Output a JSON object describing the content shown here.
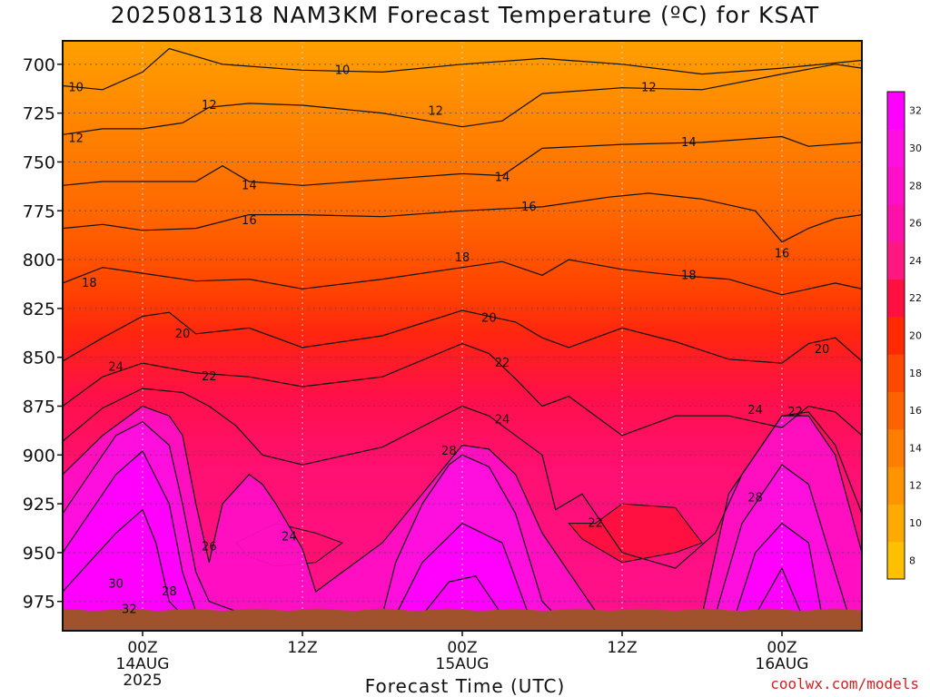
{
  "chart_data": {
    "type": "heatmap",
    "title": "2025081318 NAM3KM Forecast Temperature (ºC) for KSAT",
    "xlabel": "Forecast Time (UTC)",
    "ylabel": "",
    "y_axis": {
      "ticks": [
        700,
        725,
        750,
        775,
        800,
        825,
        850,
        875,
        900,
        925,
        950,
        975
      ],
      "range": [
        688,
        990
      ],
      "inverted": true,
      "units": "hPa"
    },
    "x_axis": {
      "range_hours": [
        -6,
        54
      ],
      "ticks": [
        {
          "hour": 0,
          "lines": [
            "00Z",
            "14AUG",
            "2025"
          ]
        },
        {
          "hour": 12,
          "lines": [
            "12Z"
          ]
        },
        {
          "hour": 24,
          "lines": [
            "00Z",
            "15AUG"
          ]
        },
        {
          "hour": 36,
          "lines": [
            "12Z"
          ]
        },
        {
          "hour": 48,
          "lines": [
            "00Z",
            "16AUG"
          ]
        }
      ]
    },
    "grid": true,
    "colorbar": {
      "ticks": [
        8,
        10,
        12,
        14,
        16,
        18,
        20,
        22,
        24,
        26,
        28,
        30,
        32
      ],
      "colors": [
        "#ffc000",
        "#ffaa00",
        "#ff9400",
        "#ff7d00",
        "#ff6200",
        "#ff4800",
        "#ff2a00",
        "#ff1040",
        "#ff1880",
        "#ff10a8",
        "#ff10c8",
        "#ff10e0",
        "#ff00ff"
      ],
      "placement": "right"
    },
    "contour_interval": 2,
    "surface_pressure_hpa": 980,
    "terrain_color": "#a0522d",
    "isotherms": [
      {
        "temp": 10,
        "points": [
          [
            -6,
            711
          ],
          [
            -3,
            713
          ],
          [
            0,
            704
          ],
          [
            2,
            692
          ],
          [
            6,
            700
          ],
          [
            12,
            703
          ],
          [
            18,
            704
          ],
          [
            24,
            700
          ],
          [
            30,
            697
          ],
          [
            36,
            700
          ],
          [
            42,
            705
          ],
          [
            48,
            702
          ],
          [
            54,
            698
          ]
        ]
      },
      {
        "temp": 12,
        "points": [
          [
            -6,
            736
          ],
          [
            -3,
            733
          ],
          [
            0,
            733
          ],
          [
            3,
            730
          ],
          [
            5,
            722
          ],
          [
            8,
            720
          ],
          [
            12,
            721
          ],
          [
            18,
            725
          ],
          [
            24,
            732
          ],
          [
            27,
            729
          ],
          [
            30,
            715
          ],
          [
            36,
            712
          ],
          [
            42,
            713
          ],
          [
            48,
            705
          ],
          [
            52,
            700
          ],
          [
            54,
            702
          ]
        ]
      },
      {
        "temp": 14,
        "points": [
          [
            -6,
            762
          ],
          [
            -3,
            760
          ],
          [
            0,
            760
          ],
          [
            4,
            760
          ],
          [
            6,
            752
          ],
          [
            8,
            760
          ],
          [
            12,
            762
          ],
          [
            18,
            759
          ],
          [
            24,
            756
          ],
          [
            27,
            757
          ],
          [
            30,
            743
          ],
          [
            36,
            741
          ],
          [
            42,
            740
          ],
          [
            48,
            737
          ],
          [
            50,
            742
          ],
          [
            54,
            740
          ]
        ]
      },
      {
        "temp": 16,
        "points": [
          [
            -6,
            784
          ],
          [
            -3,
            782
          ],
          [
            0,
            785
          ],
          [
            4,
            784
          ],
          [
            8,
            777
          ],
          [
            12,
            777
          ],
          [
            18,
            778
          ],
          [
            24,
            775
          ],
          [
            30,
            773
          ],
          [
            33,
            770
          ],
          [
            35,
            768
          ],
          [
            38,
            766
          ],
          [
            42,
            769
          ],
          [
            46,
            775
          ],
          [
            48,
            791
          ],
          [
            50,
            784
          ],
          [
            52,
            779
          ],
          [
            54,
            777
          ]
        ]
      },
      {
        "temp": 18,
        "points": [
          [
            -6,
            812
          ],
          [
            -3,
            804
          ],
          [
            0,
            807
          ],
          [
            4,
            811
          ],
          [
            8,
            810
          ],
          [
            12,
            815
          ],
          [
            18,
            810
          ],
          [
            24,
            804
          ],
          [
            27,
            801
          ],
          [
            30,
            808
          ],
          [
            32,
            800
          ],
          [
            36,
            805
          ],
          [
            40,
            808
          ],
          [
            44,
            810
          ],
          [
            48,
            818
          ],
          [
            52,
            812
          ],
          [
            54,
            815
          ]
        ]
      },
      {
        "temp": 20,
        "points": [
          [
            -6,
            852
          ],
          [
            -3,
            840
          ],
          [
            0,
            829
          ],
          [
            2,
            827
          ],
          [
            4,
            838
          ],
          [
            8,
            835
          ],
          [
            12,
            845
          ],
          [
            18,
            839
          ],
          [
            24,
            826
          ],
          [
            28,
            832
          ],
          [
            30,
            840
          ],
          [
            32,
            845
          ],
          [
            36,
            835
          ],
          [
            40,
            842
          ],
          [
            44,
            851
          ],
          [
            48,
            853
          ],
          [
            50,
            843
          ],
          [
            52,
            840
          ],
          [
            54,
            852
          ]
        ]
      },
      {
        "temp": 22,
        "points": [
          [
            -6,
            875
          ],
          [
            -3,
            860
          ],
          [
            0,
            853
          ],
          [
            4,
            858
          ],
          [
            8,
            860
          ],
          [
            12,
            865
          ],
          [
            18,
            860
          ],
          [
            24,
            843
          ],
          [
            26,
            848
          ],
          [
            28,
            861
          ],
          [
            30,
            875
          ],
          [
            32,
            870
          ],
          [
            36,
            890
          ],
          [
            40,
            880
          ],
          [
            44,
            880
          ],
          [
            48,
            886
          ],
          [
            50,
            875
          ],
          [
            52,
            878
          ],
          [
            54,
            890
          ]
        ]
      },
      {
        "temp": 24,
        "points": [
          [
            -6,
            893
          ],
          [
            -3,
            876
          ],
          [
            0,
            866
          ],
          [
            3,
            868
          ],
          [
            5,
            875
          ],
          [
            7,
            885
          ],
          [
            9,
            900
          ],
          [
            12,
            905
          ],
          [
            18,
            896
          ],
          [
            24,
            875
          ],
          [
            26,
            880
          ],
          [
            28,
            890
          ],
          [
            30,
            900
          ],
          [
            31,
            928
          ],
          [
            33,
            920
          ],
          [
            36,
            950
          ],
          [
            40,
            958
          ],
          [
            43,
            940
          ],
          [
            45,
            910
          ],
          [
            48,
            880
          ],
          [
            50,
            878
          ],
          [
            52,
            895
          ],
          [
            54,
            930
          ]
        ]
      },
      {
        "temp": 26,
        "points": [
          [
            -6,
            910
          ],
          [
            -3,
            890
          ],
          [
            0,
            875
          ],
          [
            2,
            880
          ],
          [
            3,
            890
          ],
          [
            4,
            925
          ],
          [
            5,
            955
          ],
          [
            6,
            925
          ],
          [
            8,
            910
          ],
          [
            9,
            915
          ],
          [
            10,
            925
          ],
          [
            12,
            948
          ],
          [
            13,
            970
          ],
          [
            15,
            960
          ],
          [
            18,
            945
          ],
          [
            21,
            920
          ],
          [
            24,
            895
          ],
          [
            26,
            897
          ],
          [
            28,
            910
          ],
          [
            30,
            940
          ],
          [
            32,
            960
          ],
          [
            34,
            980
          ]
        ]
      },
      {
        "temp": 28,
        "points": [
          [
            -6,
            930
          ],
          [
            -4,
            910
          ],
          [
            -2,
            890
          ],
          [
            0,
            883
          ],
          [
            2,
            895
          ],
          [
            3,
            925
          ],
          [
            4,
            960
          ],
          [
            5,
            975
          ],
          [
            7,
            980
          ]
        ]
      },
      {
        "temp": 30,
        "points": [
          [
            -6,
            950
          ],
          [
            -4,
            930
          ],
          [
            -2,
            910
          ],
          [
            0,
            898
          ],
          [
            2,
            925
          ],
          [
            3,
            960
          ],
          [
            4,
            980
          ]
        ]
      },
      {
        "temp": 32,
        "points": [
          [
            -6,
            970
          ],
          [
            -4,
            955
          ],
          [
            -2,
            940
          ],
          [
            0,
            928
          ],
          [
            1,
            945
          ],
          [
            2,
            975
          ],
          [
            3,
            982
          ]
        ]
      },
      {
        "temp": 28,
        "points": [
          [
            18,
            982
          ],
          [
            19,
            955
          ],
          [
            21,
            925
          ],
          [
            23,
            905
          ],
          [
            24,
            900
          ],
          [
            26,
            906
          ],
          [
            28,
            930
          ],
          [
            30,
            975
          ],
          [
            31,
            982
          ]
        ]
      },
      {
        "temp": 30,
        "points": [
          [
            19,
            982
          ],
          [
            21,
            955
          ],
          [
            24,
            935
          ],
          [
            27,
            945
          ],
          [
            29,
            982
          ]
        ]
      },
      {
        "temp": 32,
        "points": [
          [
            21,
            982
          ],
          [
            23,
            965
          ],
          [
            25,
            962
          ],
          [
            27,
            982
          ]
        ]
      },
      {
        "temp": 26,
        "points": [
          [
            42,
            982
          ],
          [
            44,
            920
          ],
          [
            48,
            880
          ],
          [
            50,
            880
          ],
          [
            52,
            900
          ],
          [
            54,
            950
          ]
        ]
      },
      {
        "temp": 28,
        "points": [
          [
            43,
            982
          ],
          [
            45,
            935
          ],
          [
            48,
            905
          ],
          [
            50,
            915
          ],
          [
            52,
            960
          ],
          [
            53,
            982
          ]
        ]
      },
      {
        "temp": 30,
        "points": [
          [
            44.5,
            982
          ],
          [
            46,
            950
          ],
          [
            48,
            935
          ],
          [
            50,
            945
          ],
          [
            51,
            982
          ]
        ]
      },
      {
        "temp": 32,
        "points": [
          [
            46,
            982
          ],
          [
            48,
            958
          ],
          [
            49.5,
            982
          ]
        ]
      }
    ],
    "warm_pocket_22": [
      [
        32,
        935
      ],
      [
        34,
        935
      ],
      [
        36,
        925
      ],
      [
        40,
        927
      ],
      [
        42,
        945
      ],
      [
        40,
        950
      ],
      [
        36,
        955
      ],
      [
        33,
        943
      ]
    ],
    "warm_pocket_24": [
      [
        7,
        945
      ],
      [
        10,
        935
      ],
      [
        13,
        940
      ],
      [
        15,
        945
      ],
      [
        13,
        955
      ],
      [
        10,
        957
      ],
      [
        8,
        952
      ]
    ],
    "contour_labels": [
      {
        "text": "10",
        "hour": -5,
        "hpa": 712
      },
      {
        "text": "10",
        "hour": 15,
        "hpa": 703
      },
      {
        "text": "12",
        "hour": 5,
        "hpa": 721
      },
      {
        "text": "12",
        "hour": 22,
        "hpa": 724
      },
      {
        "text": "12",
        "hour": 38,
        "hpa": 712
      },
      {
        "text": "12",
        "hour": -5,
        "hpa": 738
      },
      {
        "text": "14",
        "hour": 41,
        "hpa": 740
      },
      {
        "text": "14",
        "hour": 8,
        "hpa": 762
      },
      {
        "text": "14",
        "hour": 27,
        "hpa": 758
      },
      {
        "text": "16",
        "hour": 29,
        "hpa": 773
      },
      {
        "text": "16",
        "hour": 8,
        "hpa": 780
      },
      {
        "text": "16",
        "hour": 48,
        "hpa": 797
      },
      {
        "text": "18",
        "hour": 24,
        "hpa": 799
      },
      {
        "text": "18",
        "hour": 41,
        "hpa": 808
      },
      {
        "text": "18",
        "hour": -4,
        "hpa": 812
      },
      {
        "text": "20",
        "hour": 26,
        "hpa": 830
      },
      {
        "text": "20",
        "hour": 3,
        "hpa": 838
      },
      {
        "text": "20",
        "hour": 51,
        "hpa": 846
      },
      {
        "text": "22",
        "hour": 27,
        "hpa": 853
      },
      {
        "text": "22",
        "hour": 5,
        "hpa": 860
      },
      {
        "text": "24",
        "hour": -2,
        "hpa": 855
      },
      {
        "text": "24",
        "hour": 27,
        "hpa": 882
      },
      {
        "text": "24",
        "hour": 46,
        "hpa": 877
      },
      {
        "text": "22",
        "hour": 49,
        "hpa": 878
      },
      {
        "text": "28",
        "hour": 23,
        "hpa": 898
      },
      {
        "text": "28",
        "hour": 46,
        "hpa": 922
      },
      {
        "text": "24",
        "hour": 11,
        "hpa": 942
      },
      {
        "text": "22",
        "hour": 34,
        "hpa": 935
      },
      {
        "text": "26",
        "hour": 5,
        "hpa": 947
      },
      {
        "text": "30",
        "hour": -2,
        "hpa": 966
      },
      {
        "text": "28",
        "hour": 2,
        "hpa": 970
      },
      {
        "text": "32",
        "hour": -1,
        "hpa": 979
      }
    ]
  },
  "credit": "coolwx.com/models"
}
